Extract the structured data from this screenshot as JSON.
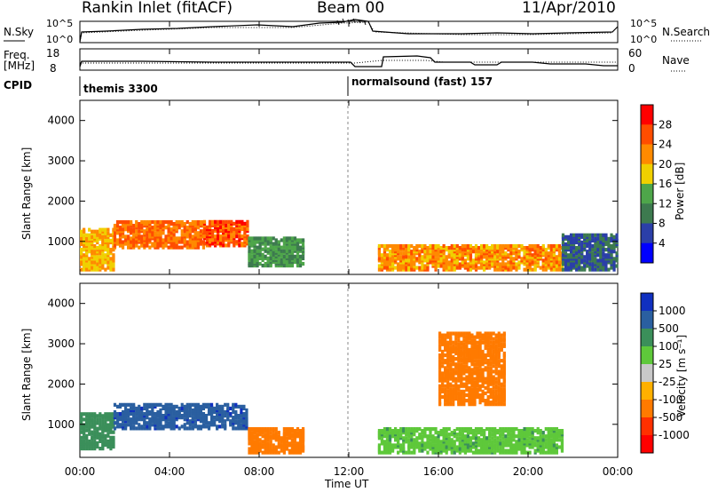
{
  "header": {
    "title": "Rankin Inlet (fitACF)",
    "beam": "Beam 00",
    "date": "11/Apr/2010"
  },
  "nsky_panel": {
    "left_label": "N.Sky",
    "left_ticks": [
      "10^5",
      "10^0"
    ],
    "right_ticks": [
      "10^5",
      "10^0"
    ],
    "right_label": "N.Search",
    "right_legend_line": "dotted"
  },
  "freq_panel": {
    "left_label_line1": "Freq.",
    "left_label_line2": "[MHz]",
    "left_ticks": [
      "18",
      "8"
    ],
    "right_ticks": [
      "60",
      "0"
    ],
    "right_label": "Nave",
    "right_legend_line": "dotted"
  },
  "cpid": {
    "label": "CPID",
    "segments": [
      {
        "name": "themis 3300",
        "start_hour": 0
      },
      {
        "name": "normalsound (fast) 157",
        "start_hour": 12
      }
    ]
  },
  "power_panel": {
    "ylabel": "Slant Range [km]",
    "yticks": [
      "1000",
      "2000",
      "3000",
      "4000"
    ],
    "colorbar_label": "Power [dB]",
    "colorbar_ticks": [
      "4",
      "8",
      "12",
      "16",
      "20",
      "24",
      "28"
    ],
    "colorbar_colors": [
      "#0000ff",
      "#2b3fa8",
      "#3d7a4f",
      "#4ea64a",
      "#f0d000",
      "#ff8a00",
      "#ff4d00",
      "#ff0000"
    ]
  },
  "velocity_panel": {
    "ylabel": "Slant Range [km]",
    "yticks": [
      "1000",
      "2000",
      "3000",
      "4000"
    ],
    "colorbar_label": "Velocity [m s⁻¹]",
    "colorbar_ticks": [
      "1000",
      "500",
      "100",
      "25",
      "-25",
      "-100",
      "-500",
      "-1000"
    ],
    "colorbar_colors": [
      "#1030c0",
      "#2a5fa0",
      "#3b8f5a",
      "#5ec83a",
      "#c8c8c8",
      "#ffb000",
      "#ff7a00",
      "#ff3000",
      "#ff0000"
    ]
  },
  "xaxis": {
    "label": "Time UT",
    "ticks": [
      "00:00",
      "04:00",
      "08:00",
      "12:00",
      "16:00",
      "20:00",
      "00:00"
    ]
  },
  "chart_data": {
    "type": "heatmap",
    "x_unit": "hours UT",
    "xlim": [
      0,
      24
    ],
    "ylim_km": [
      180,
      4500
    ],
    "power_regions": [
      {
        "t0": 0.0,
        "t1": 1.5,
        "r0": 300,
        "r1": 1300,
        "power_db": 20
      },
      {
        "t0": 1.5,
        "t1": 5.5,
        "r0": 850,
        "r1": 1500,
        "power_db": 24
      },
      {
        "t0": 5.5,
        "t1": 7.5,
        "r0": 900,
        "r1": 1500,
        "power_db": 26
      },
      {
        "t0": 7.5,
        "t1": 10.0,
        "r0": 400,
        "r1": 1100,
        "power_db": 12
      },
      {
        "t0": 13.3,
        "t1": 21.5,
        "r0": 300,
        "r1": 900,
        "power_db": 22
      },
      {
        "t0": 21.5,
        "t1": 24.0,
        "r0": 300,
        "r1": 1200,
        "power_db": 8
      }
    ],
    "velocity_regions": [
      {
        "t0": 0.0,
        "t1": 1.5,
        "r0": 400,
        "r1": 1300,
        "velocity_ms": 300
      },
      {
        "t0": 1.5,
        "t1": 7.5,
        "r0": 900,
        "r1": 1500,
        "velocity_ms": 800
      },
      {
        "t0": 7.5,
        "t1": 10.0,
        "r0": 300,
        "r1": 900,
        "velocity_ms": -200
      },
      {
        "t0": 13.3,
        "t1": 21.5,
        "r0": 300,
        "r1": 900,
        "velocity_ms": 80
      },
      {
        "t0": 16.0,
        "t1": 19.0,
        "r0": 1500,
        "r1": 3300,
        "velocity_ms": -150
      }
    ]
  }
}
